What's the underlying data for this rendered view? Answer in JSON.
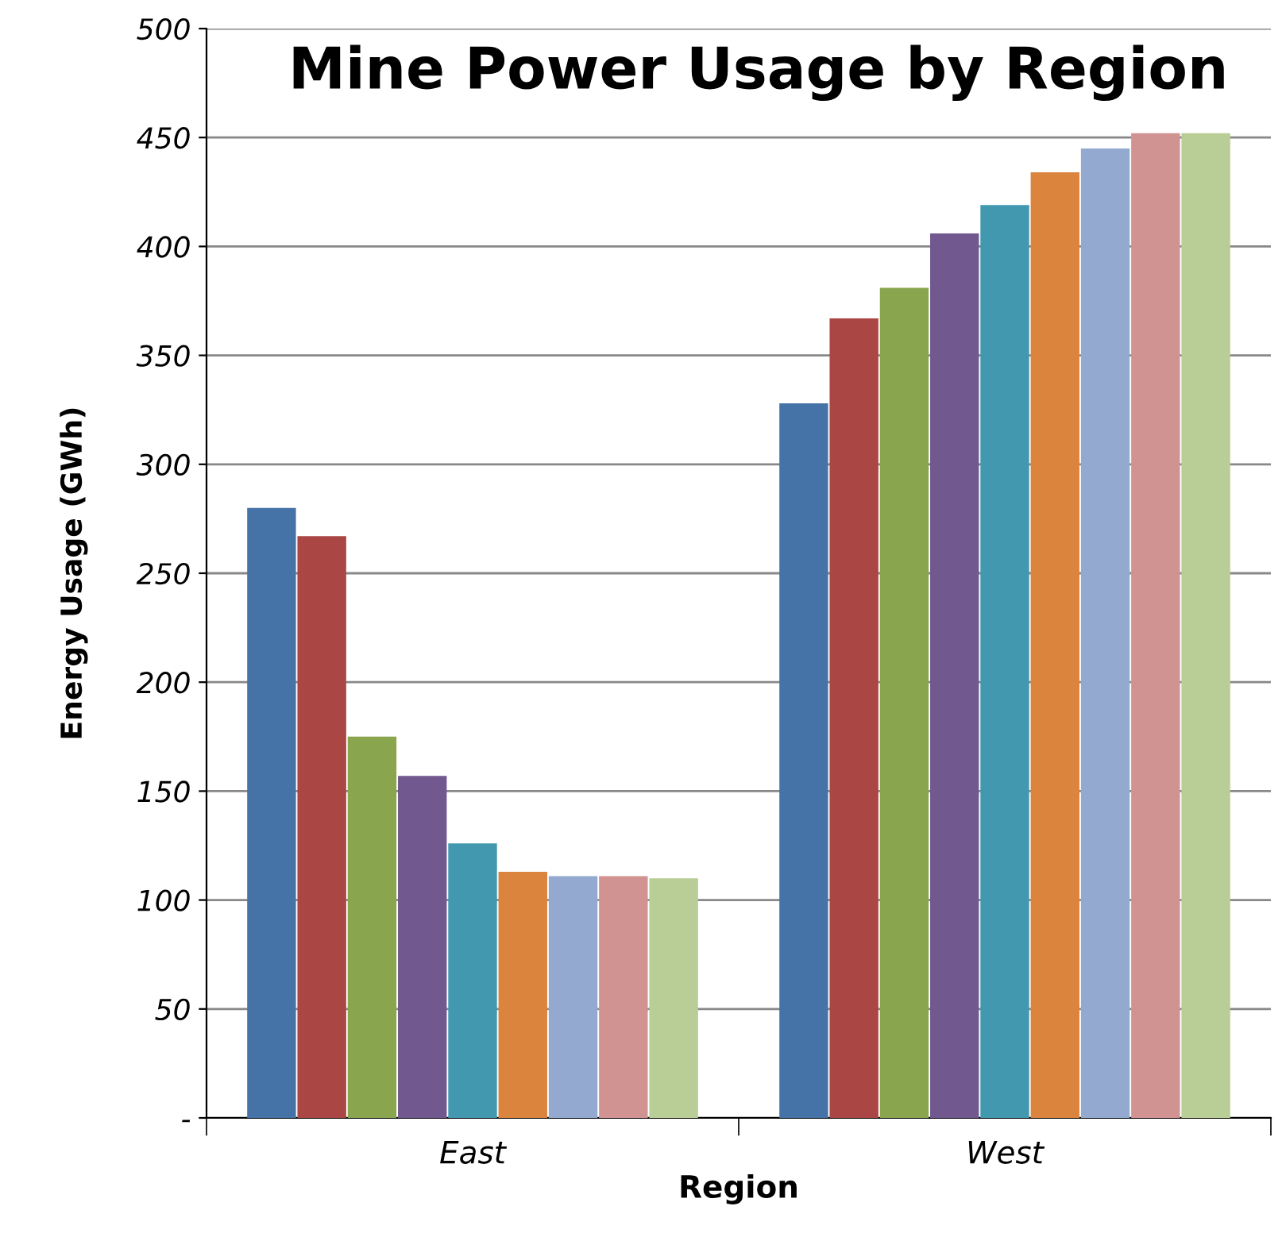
{
  "chart_data": {
    "type": "bar",
    "title": "Mine Power Usage by Region",
    "xlabel": "Region",
    "ylabel": "Energy Usage (GWh)",
    "categories": [
      "East",
      "West"
    ],
    "series": [
      {
        "color": "#4573a7",
        "values": [
          280,
          328
        ]
      },
      {
        "color": "#aa4643",
        "values": [
          267,
          367
        ]
      },
      {
        "color": "#89a54e",
        "values": [
          175,
          381
        ]
      },
      {
        "color": "#71588f",
        "values": [
          157,
          406
        ]
      },
      {
        "color": "#4198af",
        "values": [
          126,
          419
        ]
      },
      {
        "color": "#db843d",
        "values": [
          113,
          434
        ]
      },
      {
        "color": "#93a9cf",
        "values": [
          111,
          445
        ]
      },
      {
        "color": "#d19392",
        "values": [
          111,
          452
        ]
      },
      {
        "color": "#b9cd96",
        "values": [
          110,
          452
        ]
      }
    ],
    "ylim": [
      0,
      500
    ],
    "yticks": [
      {
        "value": 0,
        "label": "-"
      },
      50,
      100,
      150,
      200,
      250,
      300,
      350,
      400,
      450,
      500
    ],
    "grid": "y"
  }
}
